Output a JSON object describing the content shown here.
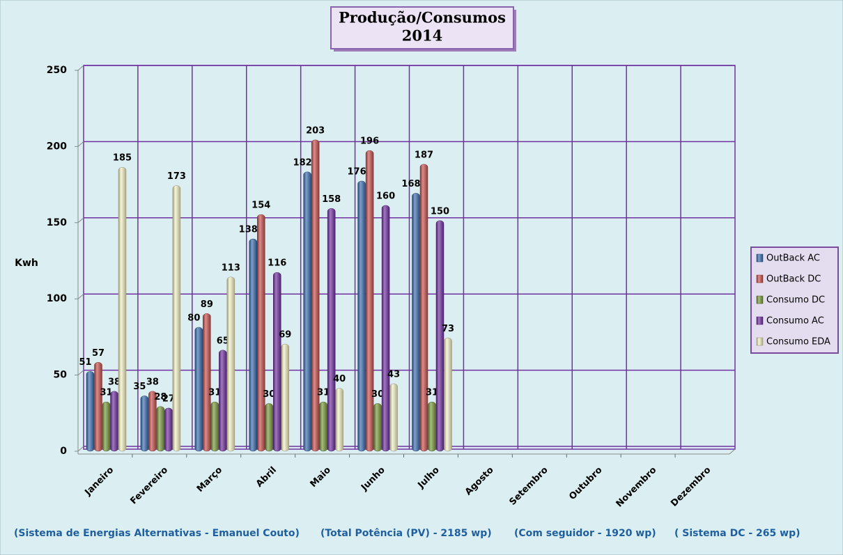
{
  "chart_data": {
    "type": "bar",
    "title": "Produção/Consumos",
    "subtitle": "2014",
    "y_label": "Kwh",
    "categories": [
      "Janeiro",
      "Fevereiro",
      "Março",
      "Abril",
      "Maio",
      "Junho",
      "Julho",
      "Agosto",
      "Setembro",
      "Outubro",
      "Novembro",
      "Dezembro"
    ],
    "series": [
      {
        "name": "OutBack AC",
        "color": "#3a6db0",
        "values": [
          51,
          35,
          80,
          138,
          182,
          176,
          168,
          null,
          null,
          null,
          null,
          null
        ]
      },
      {
        "name": "OutBack DC",
        "color": "#c9504d",
        "values": [
          57,
          38,
          89,
          154,
          203,
          196,
          187,
          null,
          null,
          null,
          null,
          null
        ]
      },
      {
        "name": "Consumo DC",
        "color": "#789a3c",
        "values": [
          31,
          28,
          31,
          30,
          31,
          30,
          31,
          null,
          null,
          null,
          null,
          null
        ]
      },
      {
        "name": "Consumo AC",
        "color": "#7030a0",
        "values": [
          38,
          27,
          65,
          116,
          158,
          160,
          150,
          null,
          null,
          null,
          null,
          null
        ]
      },
      {
        "name": "Consumo EDA",
        "color": "#f4f2c4",
        "values": [
          185,
          173,
          113,
          69,
          40,
          43,
          73,
          null,
          null,
          null,
          null,
          null
        ]
      }
    ],
    "ylim": [
      0,
      250
    ],
    "yticks": [
      0,
      50,
      100,
      150,
      200,
      250
    ],
    "grid": true,
    "legend": "right",
    "annotations": [
      "(Sistema de Energias Alternativas  - Emanuel Couto)",
      "(Total Potência (PV) - 2185 wp)",
      "(Com seguidor - 1920 wp)",
      "( Sistema DC - 265 wp)"
    ]
  }
}
